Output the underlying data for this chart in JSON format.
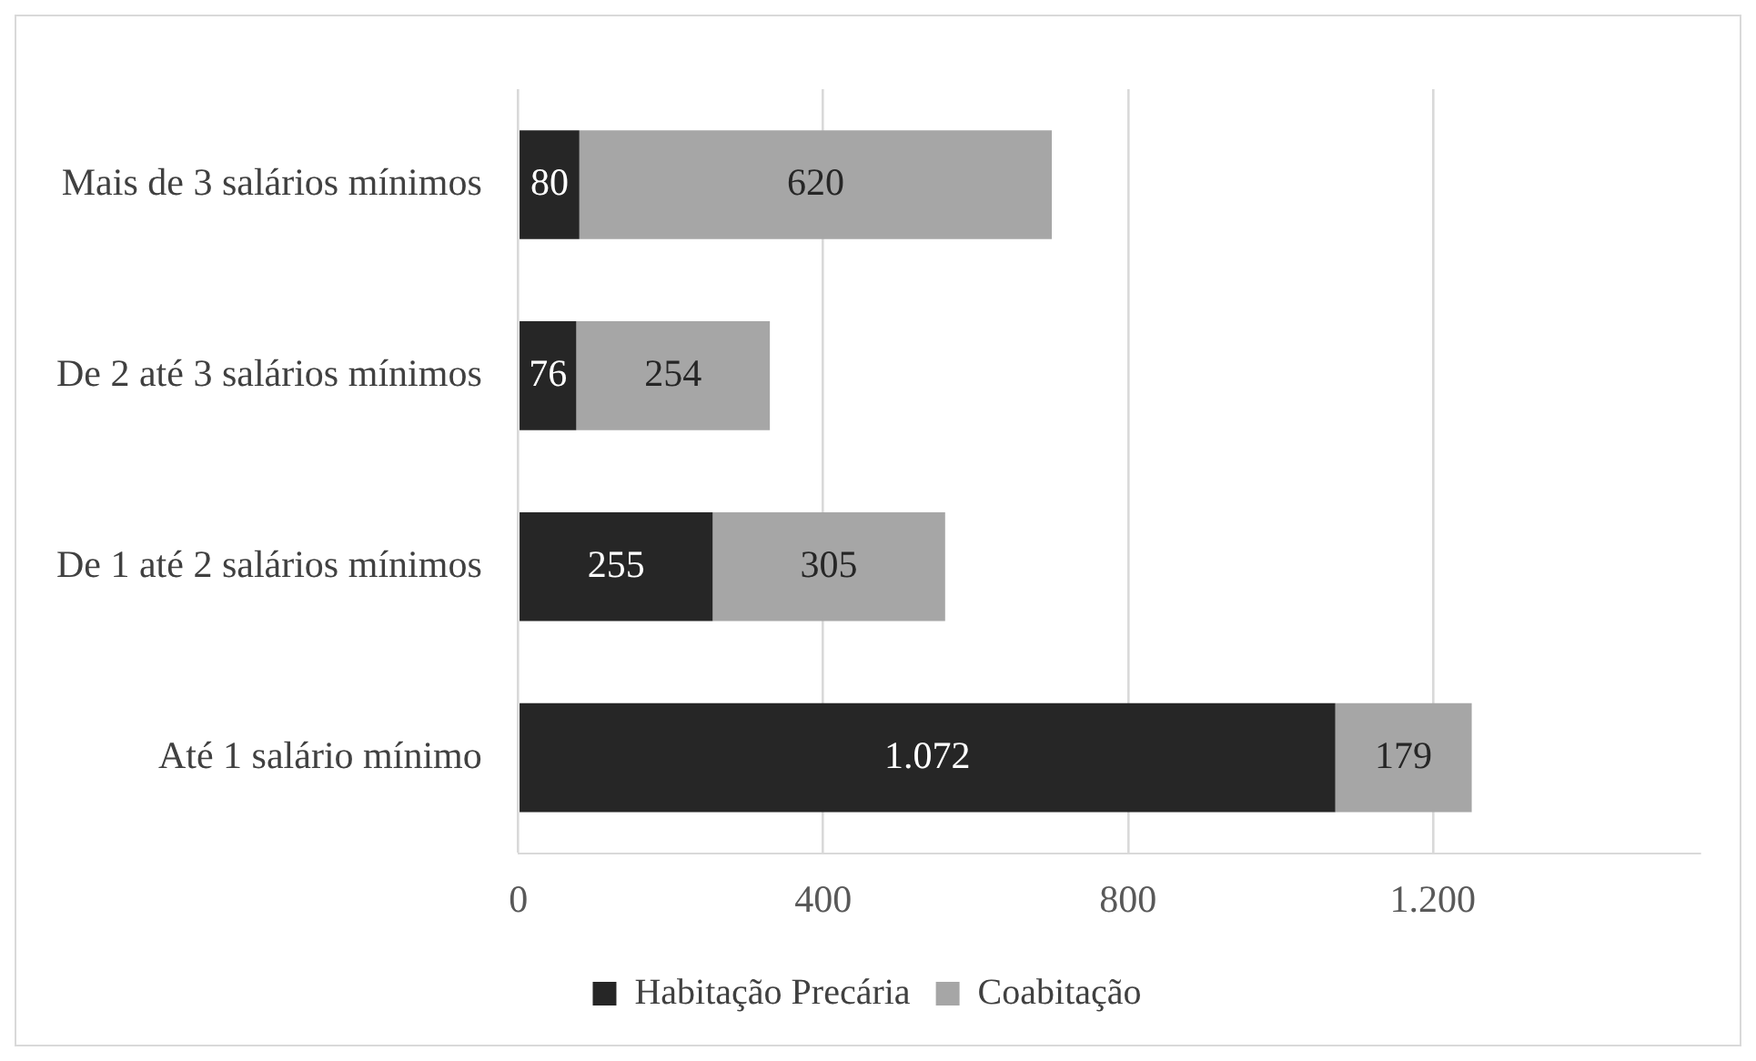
{
  "chart_data": {
    "type": "bar",
    "orientation": "horizontal",
    "stacked": true,
    "categories": [
      "Mais de 3 salários mínimos",
      "De 2 até 3 salários mínimos",
      "De 1 até 2 salários mínimos",
      "Até 1 salário mínimo"
    ],
    "series": [
      {
        "name": "Habitação Precária",
        "color": "#262626",
        "values": [
          80,
          76,
          255,
          1072
        ],
        "value_labels": [
          "80",
          "76",
          "255",
          "1.072"
        ]
      },
      {
        "name": "Coabitação",
        "color": "#a6a6a6",
        "values": [
          620,
          254,
          305,
          179
        ],
        "value_labels": [
          "620",
          "254",
          "305",
          "179"
        ]
      }
    ],
    "xlim": [
      0,
      1550
    ],
    "xticks": [
      0,
      400,
      800,
      {
        "value": 1200,
        "label": "1.200"
      }
    ],
    "grid": "x",
    "legend": "bottom"
  }
}
